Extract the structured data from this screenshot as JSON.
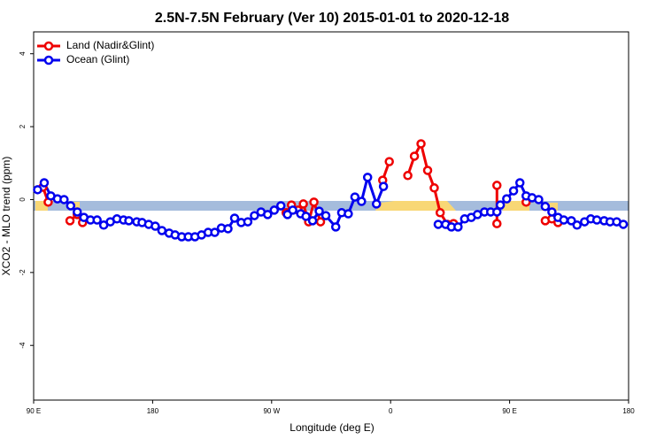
{
  "chart_data": {
    "type": "line",
    "title": "2.5N-7.5N February (Ver 10)   2015-01-01 to 2020-12-18",
    "x_label": "Longitude (deg E)",
    "y_label": "XCO2 - MLO trend (ppm)",
    "xlim": [
      90,
      540
    ],
    "xticks": [
      {
        "value": 90,
        "label": "90 E"
      },
      180,
      {
        "value": 270,
        "label": "90 W"
      },
      {
        "value": 360,
        "label": "0"
      },
      {
        "value": 450,
        "label": "90 E"
      },
      {
        "value": 540,
        "label": "180"
      }
    ],
    "ylim": [
      -5.5,
      4.6
    ],
    "yticks": [
      -4,
      -2,
      0,
      2,
      4
    ],
    "legend": "top-left",
    "series": [
      {
        "name": "Land (Nadir&Glint)",
        "color": "#ee0000",
        "x": [
          97,
          101,
          null,
          117.5,
          123,
          127,
          null,
          281,
          285,
          290,
          294,
          298,
          302,
          307,
          null,
          354,
          359,
          null,
          373,
          378,
          383,
          388,
          393,
          397.5,
          403,
          407.6,
          null,
          440.4,
          440.4,
          null,
          462.5,
          null,
          477,
          482,
          486.6
        ],
        "values": [
          0.34,
          -0.07,
          null,
          -0.58,
          -0.41,
          -0.63,
          null,
          -0.36,
          -0.15,
          -0.29,
          -0.12,
          -0.61,
          -0.07,
          -0.61,
          null,
          0.53,
          1.04,
          null,
          0.66,
          1.19,
          1.53,
          0.8,
          0.32,
          -0.36,
          -0.68,
          -0.66,
          null,
          0.39,
          -0.66,
          null,
          -0.07,
          null,
          -0.58,
          -0.53,
          -0.63
        ]
      },
      {
        "name": "Ocean (Glint)",
        "color": "#0000ee",
        "x": [
          93,
          98,
          103,
          108,
          113,
          118,
          123,
          128,
          133,
          138,
          143,
          148,
          153,
          158,
          162,
          168,
          172,
          177,
          182,
          187,
          192.5,
          197,
          202,
          207,
          212,
          217,
          222,
          227,
          232,
          237,
          242,
          247,
          252,
          257,
          262,
          267,
          272,
          277,
          282,
          286,
          292,
          296,
          301,
          306,
          311,
          318.5,
          323,
          328,
          333,
          338,
          342.6,
          349.3,
          354.6,
          null,
          396,
          401.6,
          406,
          411,
          416,
          421,
          425.7,
          431,
          435.7,
          440.4,
          443,
          447.8,
          453,
          457.8,
          462.5,
          467,
          472,
          477,
          482,
          486.6,
          491,
          496.7,
          501,
          506.7,
          511.4,
          516,
          521.5,
          526,
          531,
          536
        ],
        "values": [
          0.27,
          0.46,
          0.1,
          0.02,
          0,
          -0.17,
          -0.34,
          -0.49,
          -0.56,
          -0.56,
          -0.7,
          -0.61,
          -0.53,
          -0.56,
          -0.58,
          -0.61,
          -0.63,
          -0.68,
          -0.73,
          -0.85,
          -0.92,
          -0.97,
          -1.02,
          -1.02,
          -1.02,
          -0.97,
          -0.9,
          -0.9,
          -0.78,
          -0.8,
          -0.51,
          -0.63,
          -0.61,
          -0.44,
          -0.34,
          -0.41,
          -0.29,
          -0.17,
          -0.41,
          -0.29,
          -0.39,
          -0.46,
          -0.58,
          -0.32,
          -0.44,
          -0.75,
          -0.36,
          -0.39,
          0.07,
          -0.05,
          0.61,
          -0.12,
          0.36,
          null,
          -0.68,
          -0.68,
          -0.75,
          -0.75,
          -0.53,
          -0.49,
          -0.41,
          -0.34,
          -0.34,
          -0.34,
          -0.15,
          0.02,
          0.24,
          0.46,
          0.1,
          0.05,
          0,
          -0.19,
          -0.34,
          -0.49,
          -0.56,
          -0.58,
          -0.7,
          -0.61,
          -0.53,
          -0.56,
          -0.58,
          -0.61,
          -0.61,
          -0.68
        ]
      }
    ]
  }
}
